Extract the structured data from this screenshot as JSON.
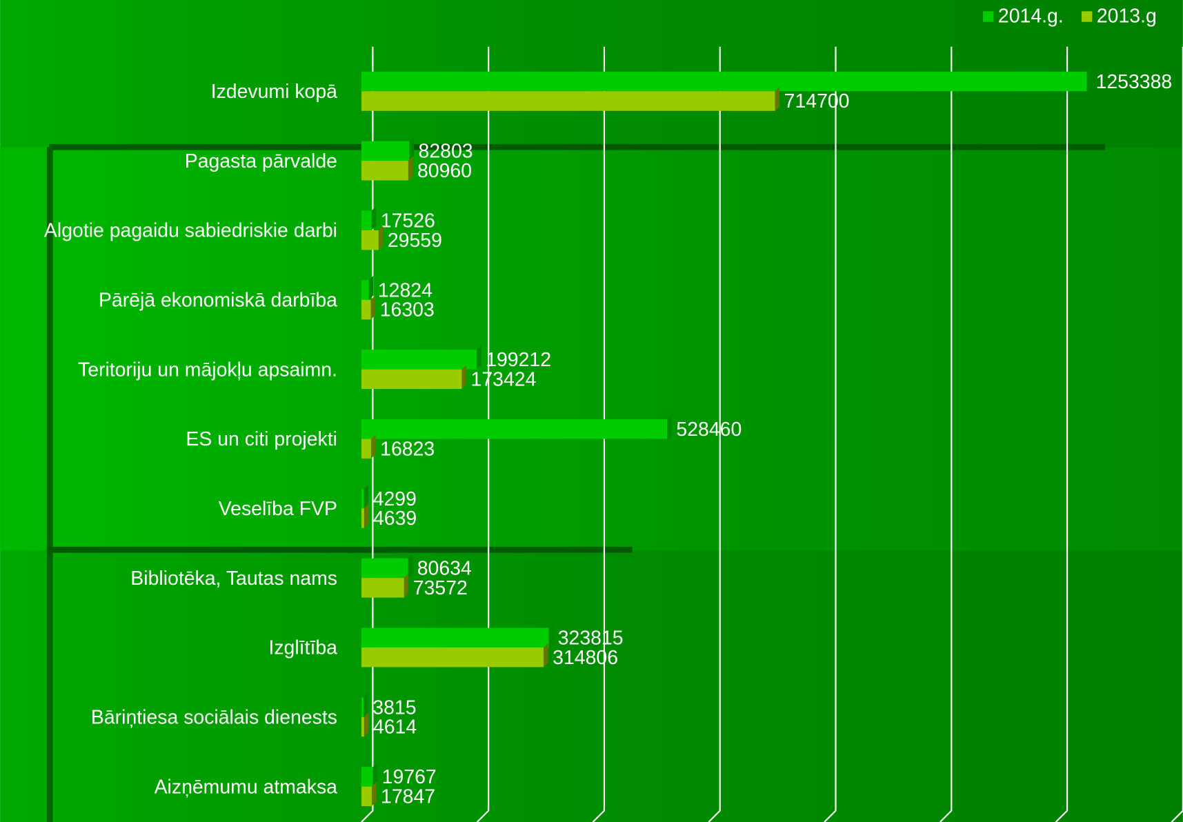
{
  "chart_data": {
    "type": "hbar",
    "categories": [
      "Izdevumi kopā",
      "Pagasta pārvalde",
      "Algotie pagaidu sabiedriskie darbi",
      "Pārējā ekonomiskā darbība",
      "Teritoriju un mājokļu apsaimn.",
      "ES un citi projekti",
      "Veselība FVP",
      "Bibliotēka, Tautas nams",
      "Izglītība",
      "Bāriņtiesa sociālais dienests",
      "Aizņēmumu atmaksa"
    ],
    "series": [
      {
        "name": "2014.g.",
        "color": "#00cc00",
        "values": [
          1253388,
          82803,
          17526,
          12824,
          199212,
          528460,
          4299,
          80634,
          323815,
          3815,
          19767
        ]
      },
      {
        "name": "2013.g",
        "color": "#99cc00",
        "values": [
          714700,
          80960,
          29559,
          16303,
          173424,
          16823,
          4639,
          73572,
          314806,
          4614,
          17847
        ]
      }
    ],
    "xlim": [
      0,
      1400000
    ],
    "xticks": [
      0,
      200000,
      400000,
      600000,
      800000,
      1000000,
      1200000,
      1400000
    ],
    "grid": true,
    "legend": "top-right"
  }
}
